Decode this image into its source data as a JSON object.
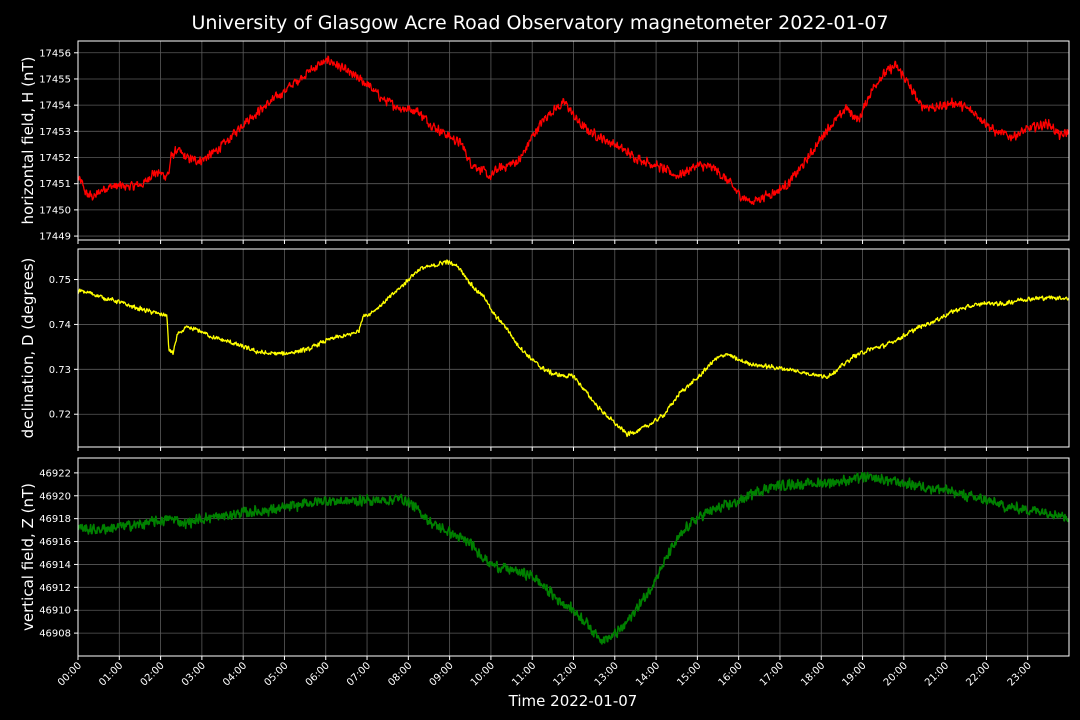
{
  "chart_data": {
    "type": "line",
    "title": "University of Glasgow Acre Road Observatory magnetometer 2022-01-07",
    "xlabel": "Time 2022-01-07",
    "x_tick_labels": [
      "00:00",
      "01:00",
      "02:00",
      "03:00",
      "04:00",
      "05:00",
      "06:00",
      "07:00",
      "08:00",
      "09:00",
      "10:00",
      "11:00",
      "12:00",
      "13:00",
      "14:00",
      "15:00",
      "16:00",
      "17:00",
      "18:00",
      "19:00",
      "20:00",
      "21:00",
      "22:00",
      "23:00"
    ],
    "xlim_hours": [
      0,
      24
    ],
    "grid": true,
    "panels": [
      {
        "name": "H",
        "ylabel": "horizontal field, H (nT)",
        "color": "#ff0000",
        "ylim": [
          17448.85,
          17456.45
        ],
        "yticks": [
          17449,
          17450,
          17451,
          17452,
          17453,
          17454,
          17455,
          17456
        ],
        "ytick_labels": [
          "17449",
          "17450",
          "17451",
          "17452",
          "17453",
          "17454",
          "17455",
          "17456"
        ],
        "noise": 0.22,
        "x": [
          0,
          0.1,
          0.2,
          0.4,
          0.6,
          0.8,
          1,
          1.3,
          1.6,
          1.8,
          2,
          2.1,
          2.2,
          2.25,
          2.4,
          2.6,
          2.8,
          3,
          3.3,
          3.6,
          4,
          4.4,
          4.8,
          5.2,
          5.6,
          5.9,
          6.1,
          6.3,
          6.6,
          7,
          7.4,
          7.8,
          8.2,
          8.6,
          9,
          9.3,
          9.5,
          9.8,
          10,
          10.1,
          10.4,
          10.7,
          11,
          11.3,
          11.5,
          11.8,
          12,
          12.2,
          12.4,
          12.6,
          13,
          13.5,
          14,
          14.5,
          15,
          15.4,
          15.8,
          16,
          16.3,
          16.6,
          16.9,
          17.2,
          17.6,
          17.9,
          18.1,
          18.4,
          18.6,
          18.9,
          19.2,
          19.4,
          19.6,
          19.8,
          20,
          20.4,
          20.8,
          21.2,
          21.5,
          21.8,
          22.2,
          22.6,
          22.9,
          23.2,
          23.5,
          23.8,
          24
        ],
        "y": [
          17451.2,
          17451.0,
          17450.6,
          17450.5,
          17450.8,
          17450.9,
          17450.9,
          17450.9,
          17451.0,
          17451.4,
          17451.4,
          17451.3,
          17451.4,
          17452.0,
          17452.3,
          17452.0,
          17451.9,
          17451.9,
          17452.2,
          17452.6,
          17453.3,
          17453.8,
          17454.3,
          17454.8,
          17455.3,
          17455.6,
          17455.7,
          17455.5,
          17455.2,
          17454.8,
          17454.2,
          17453.9,
          17453.8,
          17453.2,
          17452.8,
          17452.5,
          17451.8,
          17451.5,
          17451.2,
          17451.5,
          17451.7,
          17451.9,
          17452.8,
          17453.5,
          17453.8,
          17454.1,
          17453.6,
          17453.2,
          17453.0,
          17452.8,
          17452.5,
          17452.0,
          17451.7,
          17451.3,
          17451.7,
          17451.6,
          17451.0,
          17450.6,
          17450.3,
          17450.5,
          17450.7,
          17451.0,
          17451.8,
          17452.5,
          17453.0,
          17453.5,
          17453.9,
          17453.4,
          17454.5,
          17455.0,
          17455.3,
          17455.5,
          17455.1,
          17454.0,
          17453.9,
          17454.1,
          17453.9,
          17453.6,
          17453.0,
          17452.8,
          17453.0,
          17453.2,
          17453.3,
          17452.8,
          17453.0
        ]
      },
      {
        "name": "D",
        "ylabel": "declination, D (degrees)",
        "color": "#ffff00",
        "ylim": [
          0.7127,
          0.7568
        ],
        "yticks": [
          0.72,
          0.73,
          0.74,
          0.75
        ],
        "ytick_labels": [
          "0.72",
          "0.73",
          "0.74",
          "0.75"
        ],
        "noise": 0.0006,
        "x": [
          0,
          0.3,
          0.6,
          1,
          1.3,
          1.6,
          1.9,
          2.15,
          2.2,
          2.3,
          2.4,
          2.6,
          2.9,
          3.3,
          3.7,
          4,
          4.3,
          4.6,
          5,
          5.3,
          5.6,
          5.9,
          6.2,
          6.5,
          6.8,
          6.9,
          7,
          7.3,
          7.6,
          7.9,
          8.1,
          8.3,
          8.6,
          8.9,
          9.2,
          9.4,
          9.6,
          9.9,
          10,
          10.2,
          10.4,
          10.6,
          10.9,
          11.2,
          11.5,
          11.8,
          12,
          12.3,
          12.6,
          13,
          13.3,
          13.6,
          13.9,
          14.2,
          14.6,
          15,
          15.4,
          15.7,
          16,
          16.4,
          16.8,
          17.2,
          17.6,
          17.9,
          18.1,
          18.4,
          18.8,
          19.2,
          19.6,
          20,
          20.4,
          20.8,
          21.2,
          21.6,
          22,
          22.4,
          22.8,
          23.2,
          23.6,
          24
        ],
        "y": [
          0.7475,
          0.747,
          0.746,
          0.745,
          0.744,
          0.7432,
          0.7425,
          0.742,
          0.7345,
          0.7335,
          0.7375,
          0.7392,
          0.7388,
          0.737,
          0.736,
          0.735,
          0.734,
          0.7335,
          0.7335,
          0.734,
          0.7345,
          0.736,
          0.737,
          0.7375,
          0.7385,
          0.742,
          0.742,
          0.744,
          0.7465,
          0.749,
          0.751,
          0.7525,
          0.753,
          0.754,
          0.753,
          0.7505,
          0.748,
          0.7455,
          0.743,
          0.741,
          0.739,
          0.736,
          0.733,
          0.7305,
          0.729,
          0.7285,
          0.7285,
          0.725,
          0.7215,
          0.718,
          0.7155,
          0.7165,
          0.718,
          0.72,
          0.725,
          0.728,
          0.732,
          0.7335,
          0.732,
          0.731,
          0.7305,
          0.73,
          0.7292,
          0.7288,
          0.7282,
          0.73,
          0.733,
          0.7345,
          0.7355,
          0.7375,
          0.7395,
          0.741,
          0.743,
          0.744,
          0.7448,
          0.7445,
          0.7455,
          0.7458,
          0.746,
          0.7458
        ]
      },
      {
        "name": "Z",
        "ylabel": "vertical field, Z (nT)",
        "color": "#008000",
        "ylim": [
          46906.0,
          46923.3
        ],
        "yticks": [
          46908,
          46910,
          46912,
          46914,
          46916,
          46918,
          46920,
          46922
        ],
        "ytick_labels": [
          "46908",
          "46910",
          "46912",
          "46914",
          "46916",
          "46918",
          "46920",
          "46922"
        ],
        "noise": 0.55,
        "x": [
          0,
          0.3,
          0.6,
          1,
          1.5,
          2,
          2.3,
          2.6,
          3,
          3.5,
          4,
          4.5,
          5,
          5.5,
          6,
          6.5,
          7,
          7.5,
          7.8,
          8,
          8.3,
          8.6,
          9,
          9.5,
          10,
          10.5,
          11,
          11.3,
          11.6,
          12,
          12.3,
          12.5,
          12.7,
          12.9,
          13.2,
          13.5,
          13.8,
          14.1,
          14.4,
          14.8,
          15.2,
          15.6,
          16,
          16.4,
          16.8,
          17.2,
          17.6,
          18,
          18.5,
          19,
          19.5,
          20,
          20.5,
          21,
          21.5,
          22,
          22.5,
          23,
          23.5,
          24
        ],
        "y": [
          46917.3,
          46917.0,
          46917.1,
          46917.3,
          46917.5,
          46917.8,
          46918.0,
          46917.6,
          46918.0,
          46918.2,
          46918.5,
          46918.7,
          46918.9,
          46919.3,
          46919.6,
          46919.5,
          46919.6,
          46919.6,
          46919.8,
          46919.5,
          46918.5,
          46917.5,
          46916.8,
          46915.8,
          46914.0,
          46913.5,
          46913.0,
          46912.0,
          46911.0,
          46910.0,
          46909.0,
          46908.0,
          46907.5,
          46907.6,
          46908.5,
          46910.0,
          46911.5,
          46913.5,
          46915.5,
          46917.5,
          46918.5,
          46919.0,
          46919.5,
          46920.3,
          46920.8,
          46921.0,
          46921.0,
          46921.1,
          46921.3,
          46921.6,
          46921.4,
          46921.1,
          46920.8,
          46920.5,
          46920.0,
          46919.6,
          46919.0,
          46918.8,
          46918.6,
          46918.1
        ]
      }
    ]
  }
}
